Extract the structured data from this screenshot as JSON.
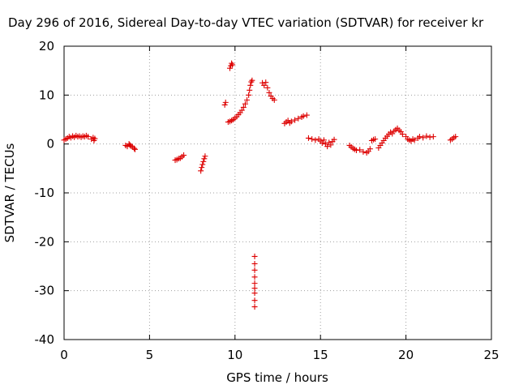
{
  "chart_data": {
    "type": "scatter",
    "title": "Day 296 of 2016, Sidereal Day-to-day VTEC variation (SDTVAR) for receiver kr",
    "xlabel": "GPS time / hours",
    "ylabel": "SDTVAR / TECUs",
    "xlim": [
      0,
      25
    ],
    "ylim": [
      -40,
      20
    ],
    "xticks": [
      0,
      5,
      10,
      15,
      20,
      25
    ],
    "yticks": [
      -40,
      -30,
      -20,
      -10,
      0,
      10,
      20
    ],
    "grid": true,
    "marker": "plus",
    "color": "#dd0000",
    "points": [
      [
        0.0,
        0.8
      ],
      [
        0.1,
        1.0
      ],
      [
        0.2,
        1.2
      ],
      [
        0.3,
        1.5
      ],
      [
        0.4,
        1.3
      ],
      [
        0.5,
        1.6
      ],
      [
        0.6,
        1.4
      ],
      [
        0.7,
        1.7
      ],
      [
        0.8,
        1.5
      ],
      [
        0.9,
        1.6
      ],
      [
        1.0,
        1.4
      ],
      [
        1.1,
        1.6
      ],
      [
        1.2,
        1.5
      ],
      [
        1.3,
        1.7
      ],
      [
        1.4,
        1.5
      ],
      [
        1.6,
        1.0
      ],
      [
        1.7,
        1.3
      ],
      [
        1.75,
        0.7
      ],
      [
        1.8,
        1.1
      ],
      [
        3.6,
        -0.3
      ],
      [
        3.7,
        -0.5
      ],
      [
        3.8,
        0.0
      ],
      [
        3.85,
        -0.2
      ],
      [
        3.9,
        -0.4
      ],
      [
        4.0,
        -0.6
      ],
      [
        4.1,
        -0.9
      ],
      [
        4.15,
        -1.1
      ],
      [
        6.5,
        -3.3
      ],
      [
        6.6,
        -3.2
      ],
      [
        6.7,
        -3.0
      ],
      [
        6.8,
        -2.9
      ],
      [
        6.9,
        -2.6
      ],
      [
        7.0,
        -2.3
      ],
      [
        8.0,
        -5.5
      ],
      [
        8.05,
        -4.8
      ],
      [
        8.1,
        -4.2
      ],
      [
        8.15,
        -3.6
      ],
      [
        8.2,
        -3.0
      ],
      [
        8.25,
        -2.5
      ],
      [
        9.4,
        8.0
      ],
      [
        9.45,
        8.5
      ],
      [
        9.7,
        15.5
      ],
      [
        9.75,
        16.0
      ],
      [
        9.8,
        16.5
      ],
      [
        9.85,
        16.2
      ],
      [
        9.6,
        4.5
      ],
      [
        9.7,
        4.6
      ],
      [
        9.8,
        4.8
      ],
      [
        9.9,
        5.0
      ],
      [
        10.0,
        5.3
      ],
      [
        10.1,
        5.6
      ],
      [
        10.2,
        6.0
      ],
      [
        10.3,
        6.4
      ],
      [
        10.4,
        6.9
      ],
      [
        10.5,
        7.5
      ],
      [
        10.6,
        8.2
      ],
      [
        10.7,
        9.0
      ],
      [
        10.8,
        10.0
      ],
      [
        10.85,
        11.0
      ],
      [
        10.9,
        12.0
      ],
      [
        10.95,
        12.7
      ],
      [
        11.0,
        13.0
      ],
      [
        11.15,
        -23.0
      ],
      [
        11.15,
        -24.5
      ],
      [
        11.15,
        -25.8
      ],
      [
        11.15,
        -27.2
      ],
      [
        11.15,
        -28.5
      ],
      [
        11.15,
        -29.5
      ],
      [
        11.15,
        -30.5
      ],
      [
        11.15,
        -32.0
      ],
      [
        11.15,
        -33.3
      ],
      [
        11.6,
        12.5
      ],
      [
        11.7,
        12.0
      ],
      [
        11.8,
        12.6
      ],
      [
        11.9,
        11.5
      ],
      [
        12.0,
        10.5
      ],
      [
        12.1,
        9.8
      ],
      [
        12.2,
        9.3
      ],
      [
        12.3,
        9.0
      ],
      [
        12.9,
        4.2
      ],
      [
        13.0,
        4.5
      ],
      [
        13.1,
        4.8
      ],
      [
        13.2,
        4.3
      ],
      [
        13.3,
        4.6
      ],
      [
        13.5,
        4.9
      ],
      [
        13.7,
        5.2
      ],
      [
        13.9,
        5.5
      ],
      [
        14.0,
        5.7
      ],
      [
        14.2,
        5.9
      ],
      [
        14.3,
        1.2
      ],
      [
        14.5,
        1.0
      ],
      [
        14.7,
        0.8
      ],
      [
        14.9,
        1.0
      ],
      [
        15.0,
        0.6
      ],
      [
        15.1,
        0.2
      ],
      [
        15.2,
        0.8
      ],
      [
        15.3,
        0.0
      ],
      [
        15.4,
        -0.5
      ],
      [
        15.5,
        0.3
      ],
      [
        15.6,
        -0.2
      ],
      [
        15.7,
        0.5
      ],
      [
        15.8,
        0.9
      ],
      [
        16.7,
        -0.3
      ],
      [
        16.8,
        -0.6
      ],
      [
        16.9,
        -0.9
      ],
      [
        17.0,
        -1.1
      ],
      [
        17.1,
        -1.3
      ],
      [
        17.3,
        -1.2
      ],
      [
        17.5,
        -1.6
      ],
      [
        17.7,
        -1.8
      ],
      [
        17.8,
        -1.5
      ],
      [
        17.9,
        -1.0
      ],
      [
        18.0,
        0.7
      ],
      [
        18.1,
        0.9
      ],
      [
        18.2,
        1.0
      ],
      [
        18.4,
        -0.8
      ],
      [
        18.5,
        -0.3
      ],
      [
        18.6,
        0.2
      ],
      [
        18.7,
        0.7
      ],
      [
        18.8,
        1.2
      ],
      [
        18.9,
        1.6
      ],
      [
        19.0,
        2.0
      ],
      [
        19.1,
        2.4
      ],
      [
        19.2,
        2.1
      ],
      [
        19.3,
        2.6
      ],
      [
        19.4,
        2.9
      ],
      [
        19.5,
        3.2
      ],
      [
        19.6,
        2.8
      ],
      [
        19.7,
        2.5
      ],
      [
        19.8,
        2.0
      ],
      [
        20.0,
        1.5
      ],
      [
        20.1,
        1.0
      ],
      [
        20.2,
        0.8
      ],
      [
        20.3,
        0.6
      ],
      [
        20.4,
        1.0
      ],
      [
        20.5,
        0.8
      ],
      [
        20.7,
        1.2
      ],
      [
        20.8,
        1.5
      ],
      [
        21.0,
        1.3
      ],
      [
        21.2,
        1.6
      ],
      [
        21.4,
        1.4
      ],
      [
        21.6,
        1.5
      ],
      [
        22.6,
        0.8
      ],
      [
        22.7,
        1.0
      ],
      [
        22.8,
        1.3
      ],
      [
        22.9,
        1.5
      ]
    ]
  }
}
